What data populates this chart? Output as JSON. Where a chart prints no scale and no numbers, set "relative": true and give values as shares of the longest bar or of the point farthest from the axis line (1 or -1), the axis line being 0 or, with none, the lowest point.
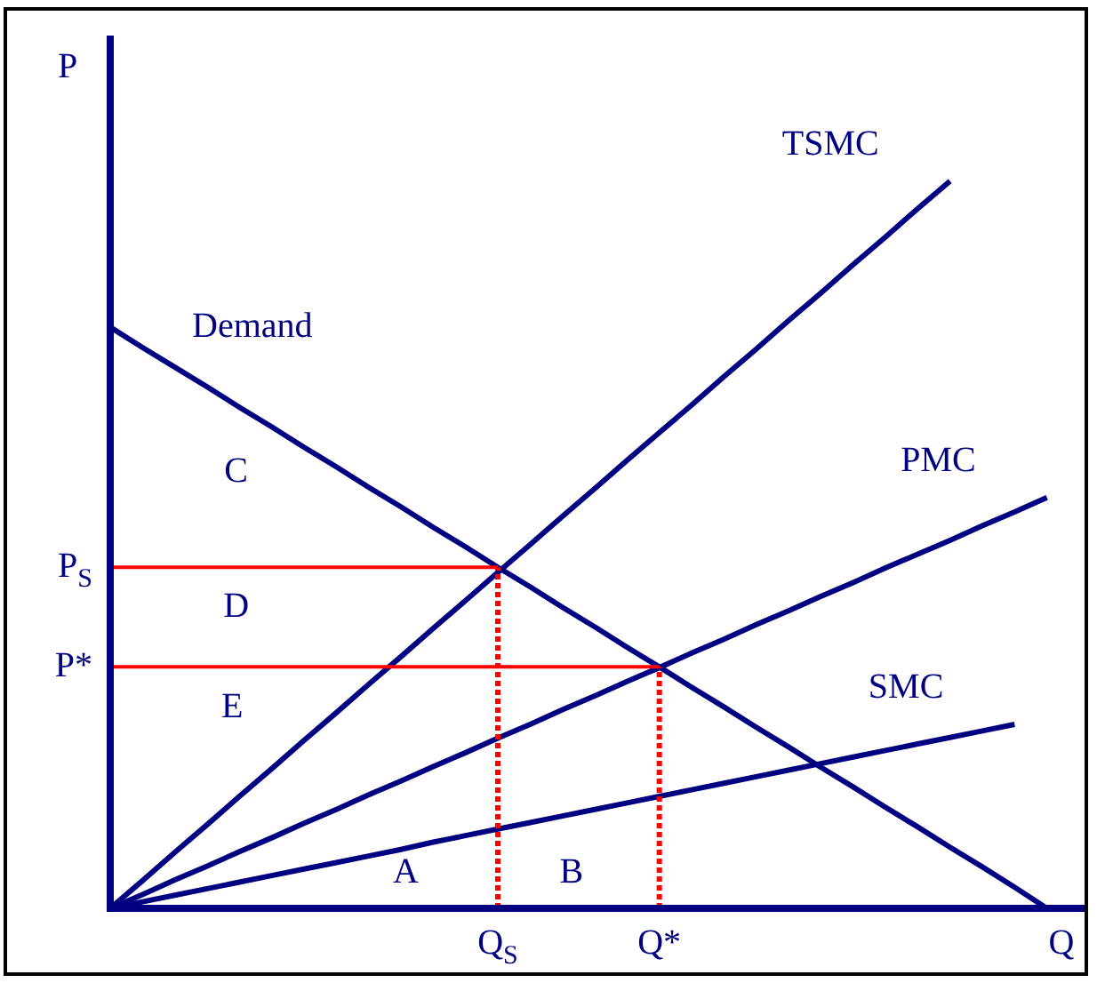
{
  "chart_data": {
    "type": "line",
    "xlabel": "Q",
    "ylabel": "P",
    "relative": true,
    "categories": [
      null,
      null,
      null,
      null,
      null,
      null,
      null,
      null,
      null,
      null,
      null,
      null,
      "Q$_{S}$",
      null,
      null,
      null,
      null,
      "Q*",
      null,
      null,
      null,
      null,
      null,
      null,
      null,
      null,
      null,
      null,
      null,
      null,
      null
    ],
    "series": [
      {
        "name": "Demand",
        "color": "#000080",
        "values": [
          0.799,
          0.771,
          0.744,
          0.717,
          0.689,
          0.662,
          0.634,
          0.607,
          0.579,
          0.552,
          0.524,
          0.497,
          0.469,
          0.442,
          0.414,
          0.387,
          0.359,
          0.332,
          0.304,
          0.277,
          0.249,
          0.222,
          0.194,
          0.167,
          0.139,
          0.112,
          0.084,
          0.057,
          0.029,
          0,
          null
        ]
      },
      {
        "name": "TSMC",
        "color": "#000080",
        "values": [
          0,
          0.038,
          0.077,
          0.115,
          0.154,
          0.192,
          0.231,
          0.269,
          0.308,
          0.346,
          0.385,
          0.423,
          0.462,
          0.5,
          0.539,
          0.577,
          0.616,
          0.654,
          0.692,
          0.731,
          0.769,
          0.808,
          0.846,
          0.885,
          0.923,
          0.962,
          1,
          null,
          null,
          null,
          null
        ]
      },
      {
        "name": "PMC",
        "color": "#000080",
        "values": [
          0,
          0.019,
          0.039,
          0.058,
          0.078,
          0.097,
          0.117,
          0.136,
          0.156,
          0.175,
          0.195,
          0.214,
          0.234,
          0.253,
          0.273,
          0.292,
          0.312,
          0.331,
          0.351,
          0.37,
          0.39,
          0.409,
          0.429,
          0.448,
          0.468,
          0.487,
          0.506,
          0.526,
          0.545,
          0.565,
          null
        ]
      },
      {
        "name": "SMC",
        "color": "#000080",
        "values": [
          0,
          0.009,
          0.018,
          0.027,
          0.036,
          0.045,
          0.054,
          0.063,
          0.072,
          0.081,
          0.091,
          0.1,
          0.109,
          0.118,
          0.127,
          0.136,
          0.145,
          0.154,
          0.163,
          0.172,
          0.181,
          0.19,
          0.199,
          0.208,
          0.217,
          0.226,
          0.235,
          0.244,
          0.253,
          null,
          null
        ]
      }
    ],
    "ref_lines": [
      {
        "axis": "y",
        "value": 0.469,
        "label": "P$_{S}$",
        "color": "#ff0000",
        "line_style": "solid"
      },
      {
        "axis": "y",
        "value": 0.332,
        "label": "P*",
        "color": "#ff0000",
        "line_style": "solid"
      },
      {
        "axis": "x",
        "value": "Q$_{S}$",
        "color": "#ff0000",
        "line_style": "dotted"
      },
      {
        "axis": "x",
        "value": "Q*",
        "color": "#ff0000",
        "line_style": "dotted"
      }
    ],
    "annotations": [
      "A",
      "B",
      "C",
      "D",
      "E"
    ]
  }
}
